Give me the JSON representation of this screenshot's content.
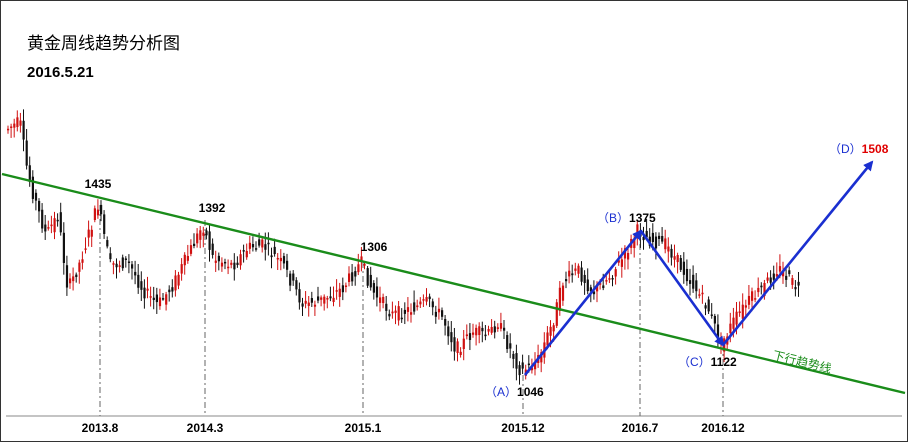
{
  "chart_title": "黄金周线趋势分析图",
  "chart_date": "2016.5.21",
  "chart_data": {
    "type": "candlestick",
    "title": "黄金周线趋势分析图",
    "subtitle": "2016.5.21",
    "x_tick_labels": [
      "2013.8",
      "2014.3",
      "2015.1",
      "2015.12",
      "2016.7",
      "2016.12"
    ],
    "price_labels": [
      {
        "text": "1435",
        "value": 1435
      },
      {
        "text": "1392",
        "value": 1392
      },
      {
        "text": "1306",
        "value": 1306
      },
      {
        "text": "1046",
        "value": 1046,
        "prefix": "（A）"
      },
      {
        "text": "1375",
        "value": 1375,
        "prefix": "（B）"
      },
      {
        "text": "1122",
        "value": 1122,
        "prefix": "（C）"
      },
      {
        "text": "1508",
        "value": 1508,
        "prefix": "（D）"
      }
    ],
    "wave_points": [
      {
        "label": "A",
        "value": 1046
      },
      {
        "label": "B",
        "value": 1375
      },
      {
        "label": "C",
        "value": 1122
      },
      {
        "label": "D",
        "value": 1508
      }
    ],
    "trendline_label": "下行趋势线",
    "colors": {
      "up": "#d01010",
      "down": "#111111",
      "trend": "#1a8c1a",
      "wave": "#1a2fd0",
      "target": "#e00000"
    }
  }
}
